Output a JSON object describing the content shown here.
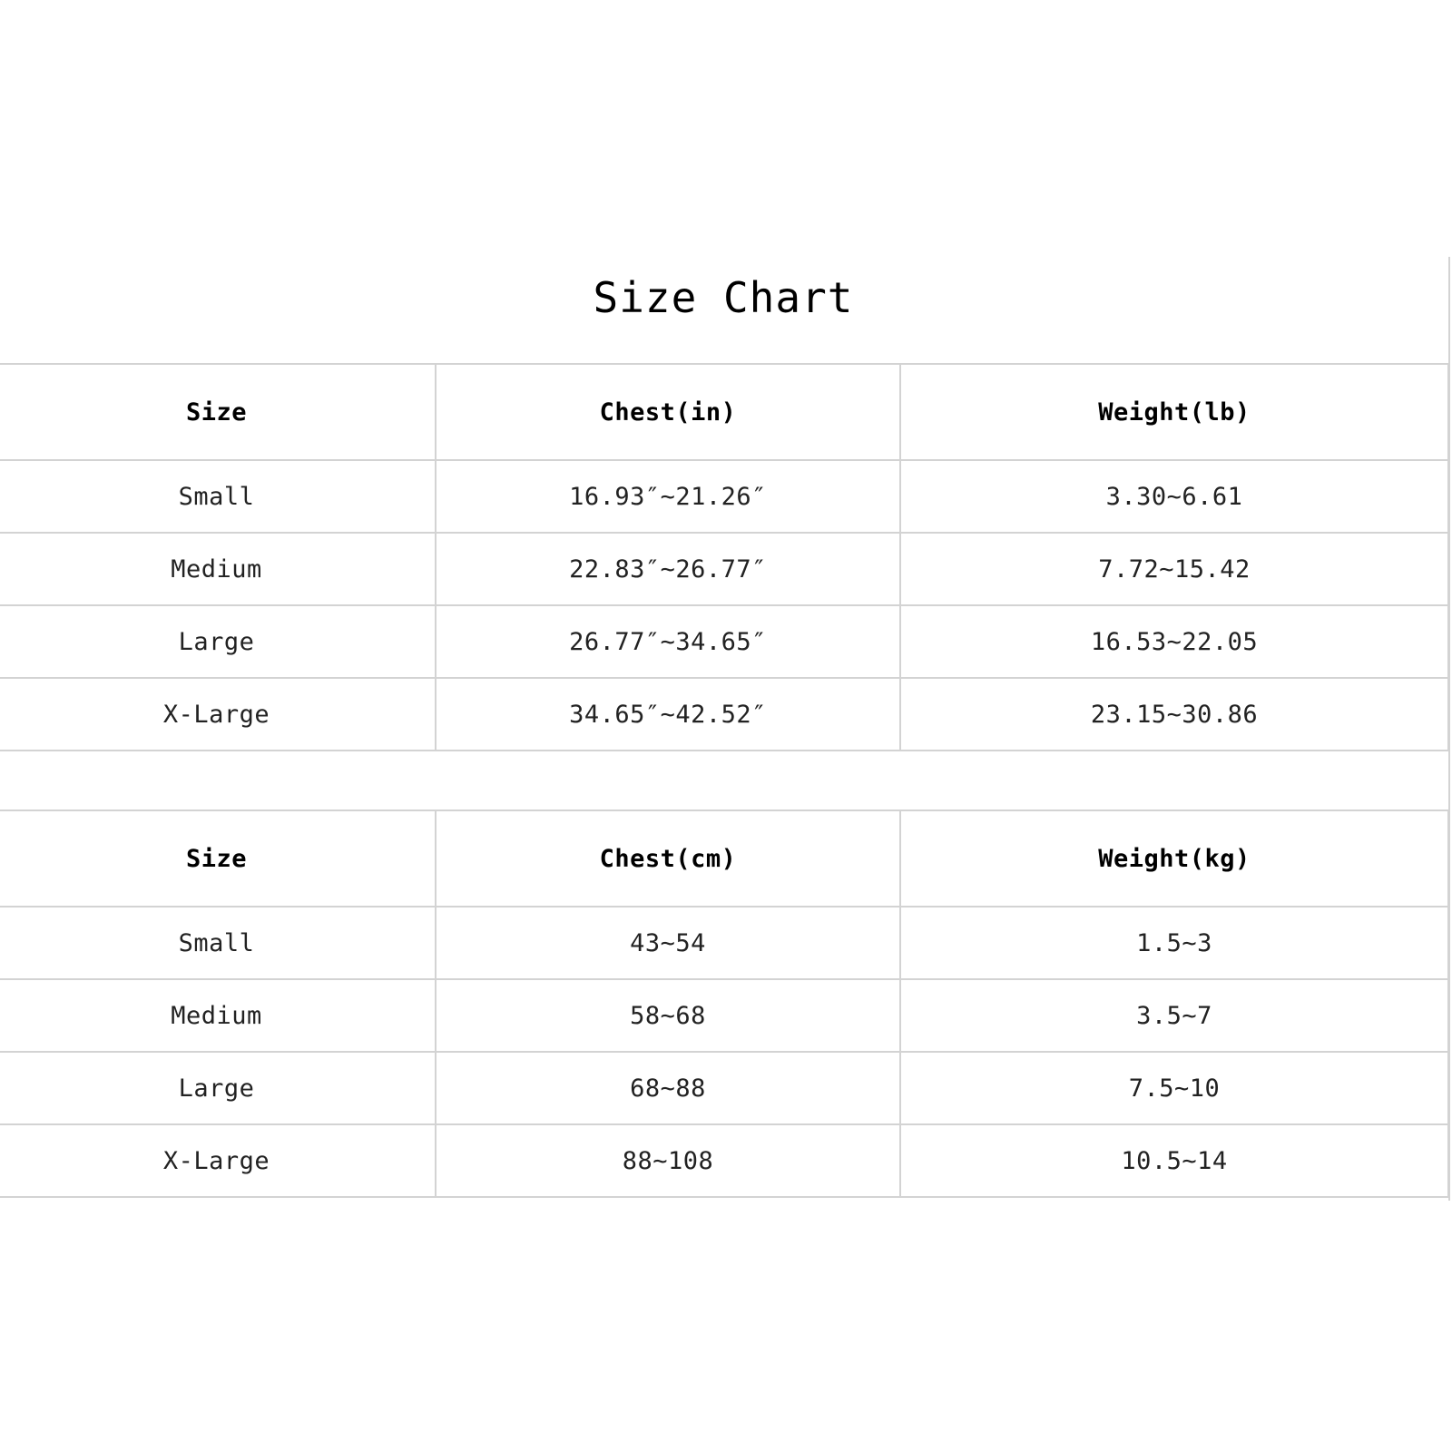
{
  "title": "Size Chart",
  "tables": [
    {
      "headers": [
        "Size",
        "Chest(in)",
        "Weight(lb)"
      ],
      "rows": [
        [
          "Small",
          "16.93″~21.26″",
          "3.30~6.61"
        ],
        [
          "Medium",
          "22.83″~26.77″",
          "7.72~15.42"
        ],
        [
          "Large",
          "26.77″~34.65″",
          "16.53~22.05"
        ],
        [
          "X-Large",
          "34.65″~42.52″",
          "23.15~30.86"
        ]
      ]
    },
    {
      "headers": [
        "Size",
        "Chest(cm)",
        "Weight(kg)"
      ],
      "rows": [
        [
          "Small",
          "43~54",
          "1.5~3"
        ],
        [
          "Medium",
          "58~68",
          "3.5~7"
        ],
        [
          "Large",
          "68~88",
          "7.5~10"
        ],
        [
          "X-Large",
          "88~108",
          "10.5~14"
        ]
      ]
    }
  ],
  "colors": {
    "background": "#ffffff",
    "grid_line": "#d3d3d3",
    "text": "#222222",
    "title": "#000000"
  }
}
